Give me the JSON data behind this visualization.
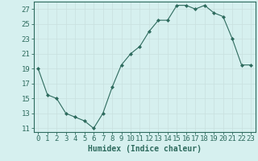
{
  "x": [
    0,
    1,
    2,
    3,
    4,
    5,
    6,
    7,
    8,
    9,
    10,
    11,
    12,
    13,
    14,
    15,
    16,
    17,
    18,
    19,
    20,
    21,
    22,
    23
  ],
  "y": [
    19,
    15.5,
    15,
    13,
    12.5,
    12,
    11,
    13,
    16.5,
    19.5,
    21,
    22,
    24,
    25.5,
    25.5,
    27.5,
    27.5,
    27,
    27.5,
    26.5,
    26,
    23,
    19.5,
    19.5
  ],
  "xlabel": "Humidex (Indice chaleur)",
  "ylim": [
    10.5,
    28
  ],
  "yticks": [
    11,
    13,
    15,
    17,
    19,
    21,
    23,
    25,
    27
  ],
  "xticks": [
    0,
    1,
    2,
    3,
    4,
    5,
    6,
    7,
    8,
    9,
    10,
    11,
    12,
    13,
    14,
    15,
    16,
    17,
    18,
    19,
    20,
    21,
    22,
    23
  ],
  "line_color": "#2e6b5e",
  "marker": "D",
  "marker_size": 2.0,
  "background_color": "#d6f0ef",
  "grid_color": "#c8e0de",
  "axis_color": "#2e6b5e",
  "xlabel_fontsize": 7,
  "tick_fontsize": 6.5
}
